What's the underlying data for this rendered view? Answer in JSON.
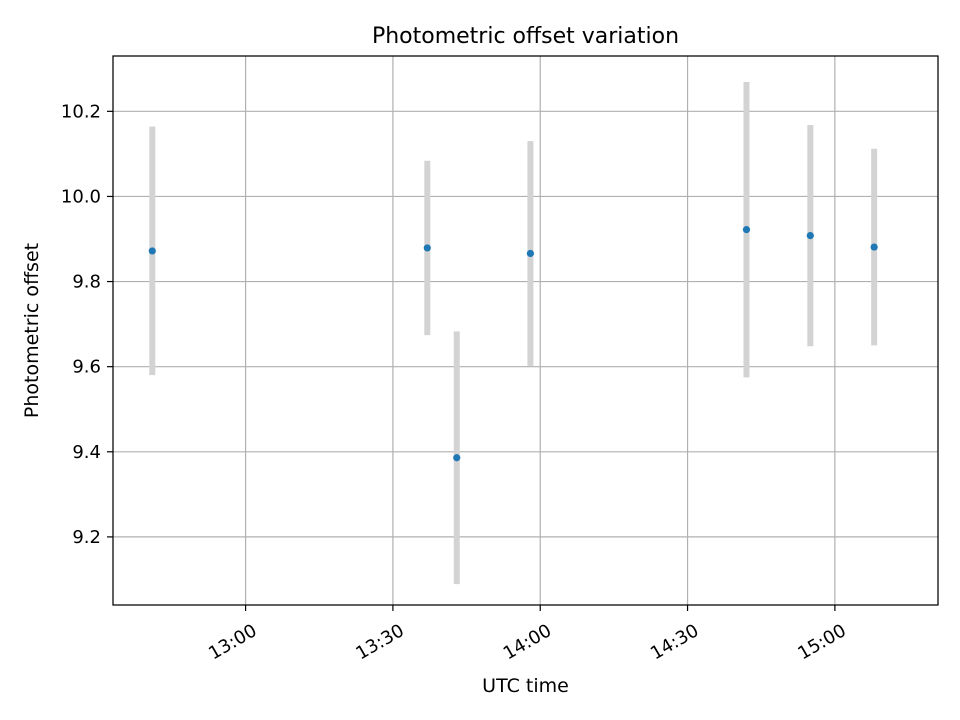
{
  "chart_data": {
    "type": "scatter",
    "title": "Photometric offset variation",
    "xlabel": "UTC time",
    "ylabel": "Photometric offset",
    "grid": true,
    "xlim": [
      "12:33",
      "15:21"
    ],
    "ylim": [
      9.04,
      10.33
    ],
    "xticks": [
      "13:00",
      "13:30",
      "14:00",
      "14:30",
      "15:00"
    ],
    "yticks": [
      "9.2",
      "9.4",
      "9.6",
      "9.8",
      "10.0",
      "10.2"
    ],
    "series": [
      {
        "x": [
          "12:41",
          "13:37",
          "13:43",
          "13:58",
          "14:42",
          "14:55",
          "15:08"
        ],
        "y": [
          9.872,
          9.879,
          9.386,
          9.866,
          9.922,
          9.908,
          9.881
        ],
        "yerr": [
          0.292,
          0.205,
          0.297,
          0.264,
          0.347,
          0.26,
          0.231
        ]
      }
    ],
    "colors": {
      "points": "#1f77b4",
      "errorbars": "#d3d3d3",
      "grid": "#b0b0b0"
    }
  }
}
